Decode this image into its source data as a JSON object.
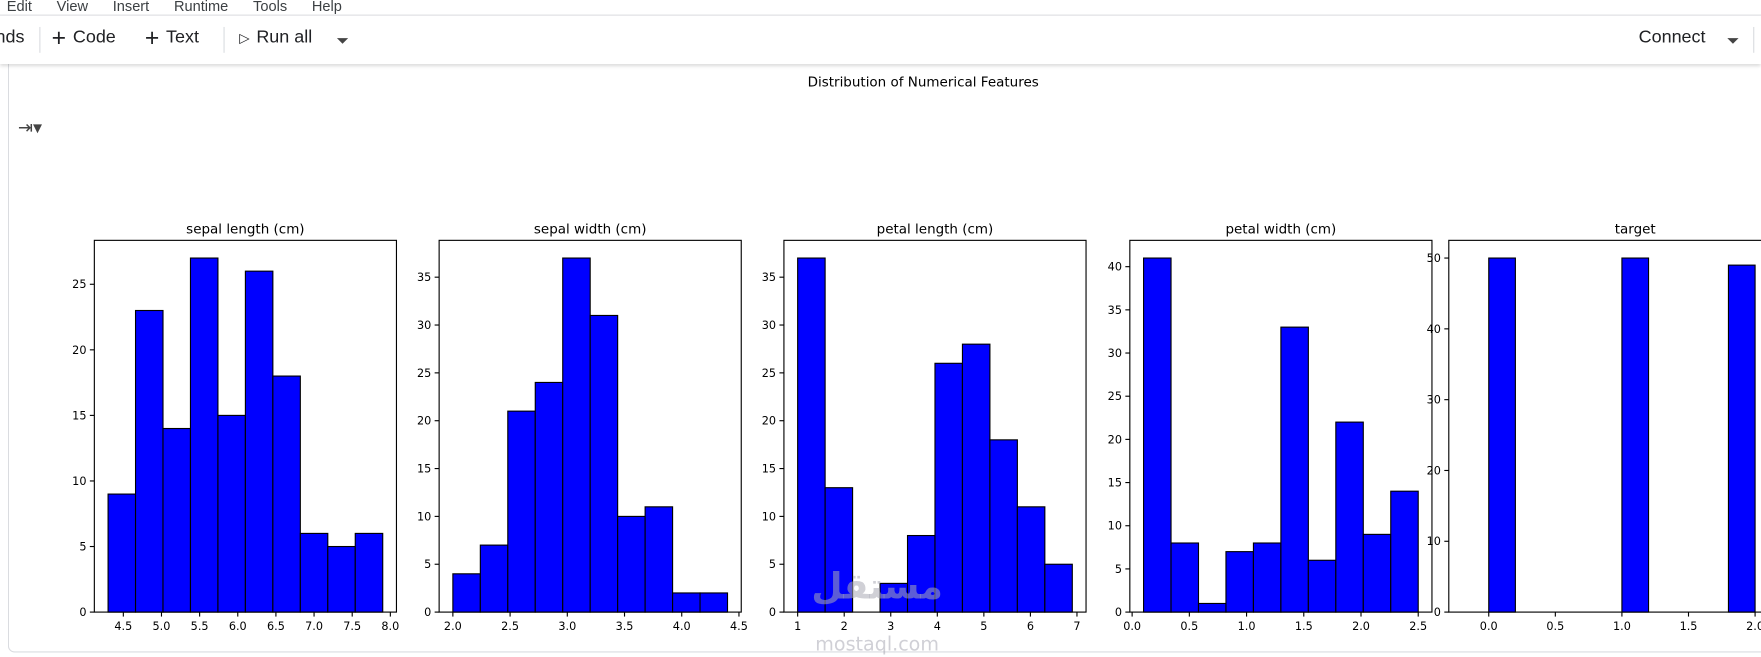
{
  "menu": [
    "Edit",
    "View",
    "Insert",
    "Runtime",
    "Tools",
    "Help"
  ],
  "toolbar": {
    "commands_partial": "nds",
    "code_label": "Code",
    "text_label": "Text",
    "run_all_label": "Run all",
    "connect_label": "Connect"
  },
  "output_icon": "output-toggle-icon",
  "figure_title": "Distribution of Numerical Features",
  "watermark": {
    "arabic": "مستقل",
    "latin": "mostaql.com"
  },
  "colors": {
    "bar": "#0000ff",
    "edge": "#000000"
  },
  "chart_data": [
    {
      "type": "bar",
      "title": "sepal length (cm)",
      "bins": 10,
      "range": [
        4.3,
        7.9
      ],
      "values": [
        9,
        23,
        14,
        27,
        15,
        26,
        18,
        6,
        5,
        6
      ],
      "xlim": [
        4.12,
        8.08
      ],
      "ylim": [
        0,
        28.35
      ],
      "xticks": [
        "4.5",
        "5.0",
        "5.5",
        "6.0",
        "6.5",
        "7.0",
        "7.5",
        "8.0"
      ],
      "yticks": [
        "0",
        "5",
        "10",
        "15",
        "20",
        "25"
      ],
      "grid": false
    },
    {
      "type": "bar",
      "title": "sepal width (cm)",
      "bins": 10,
      "range": [
        2.0,
        4.4
      ],
      "values": [
        4,
        7,
        21,
        24,
        37,
        31,
        10,
        11,
        2,
        2
      ],
      "xlim": [
        1.88,
        4.52
      ],
      "ylim": [
        0,
        38.85
      ],
      "xticks": [
        "2.0",
        "2.5",
        "3.0",
        "3.5",
        "4.0",
        "4.5"
      ],
      "yticks": [
        "0",
        "5",
        "10",
        "15",
        "20",
        "25",
        "30",
        "35"
      ],
      "grid": false
    },
    {
      "type": "bar",
      "title": "petal length (cm)",
      "bins": 10,
      "range": [
        1.0,
        6.9
      ],
      "values": [
        37,
        13,
        0,
        3,
        8,
        26,
        28,
        18,
        11,
        5
      ],
      "xlim": [
        0.705,
        7.195
      ],
      "ylim": [
        0,
        38.85
      ],
      "xticks": [
        "1",
        "2",
        "3",
        "4",
        "5",
        "6",
        "7"
      ],
      "yticks": [
        "0",
        "5",
        "10",
        "15",
        "20",
        "25",
        "30",
        "35"
      ],
      "grid": false
    },
    {
      "type": "bar",
      "title": "petal width (cm)",
      "bins": 10,
      "range": [
        0.1,
        2.5
      ],
      "values": [
        41,
        8,
        1,
        7,
        8,
        33,
        6,
        22,
        9,
        14
      ],
      "xlim": [
        -0.02,
        2.62
      ],
      "ylim": [
        0,
        43.05
      ],
      "xticks": [
        "0.0",
        "0.5",
        "1.0",
        "1.5",
        "2.0",
        "2.5"
      ],
      "yticks": [
        "0",
        "5",
        "10",
        "15",
        "20",
        "25",
        "30",
        "35",
        "40"
      ],
      "grid": false
    },
    {
      "type": "bar",
      "title": "target",
      "bins": 10,
      "range": [
        0,
        2
      ],
      "values": [
        50,
        0,
        0,
        0,
        0,
        50,
        0,
        0,
        0,
        49
      ],
      "xlim": [
        -0.3,
        2.5
      ],
      "ylim": [
        0,
        52.5
      ],
      "xticks": [
        "0.0",
        "0.5",
        "1.0",
        "1.5",
        "2.0"
      ],
      "yticks": [
        "0",
        "10",
        "20",
        "30",
        "40",
        "50"
      ],
      "grid": false
    }
  ]
}
